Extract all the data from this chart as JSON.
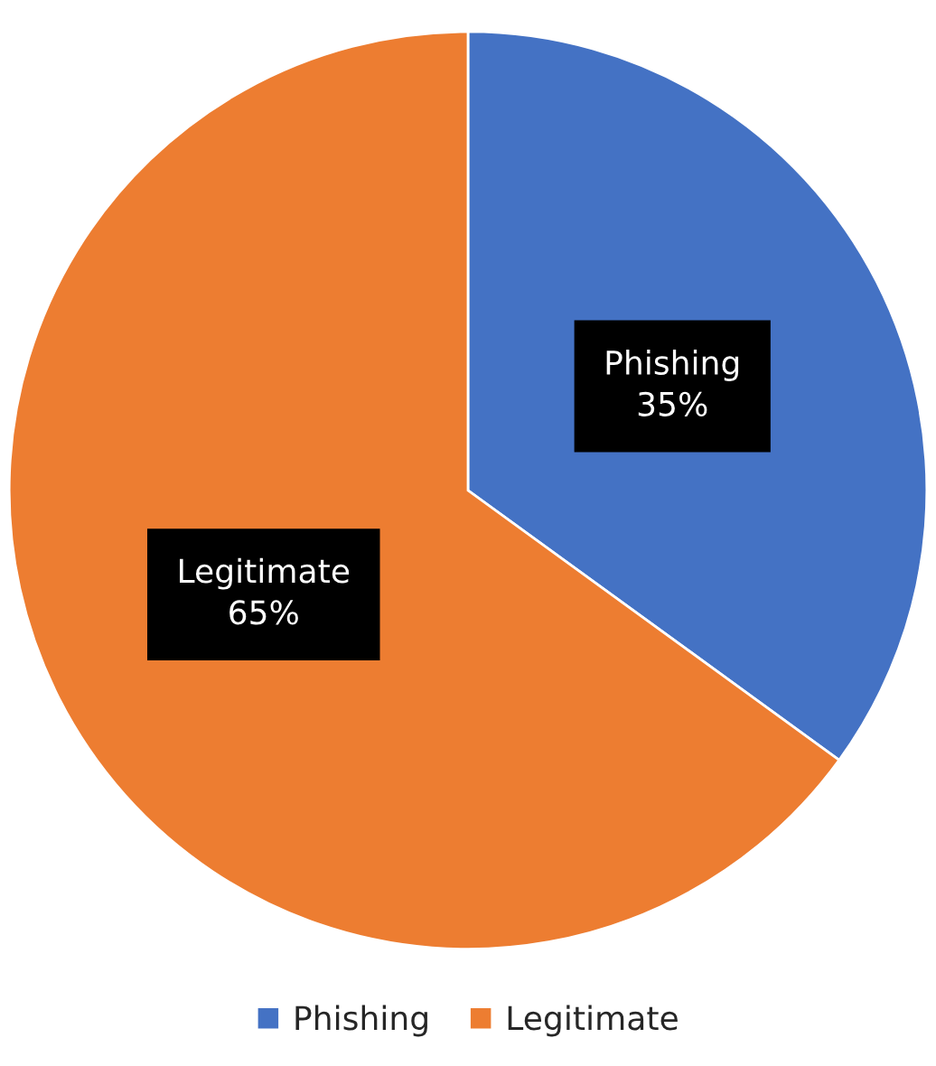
{
  "chart_data": {
    "type": "pie",
    "categories": [
      "Phishing",
      "Legitimate"
    ],
    "values": [
      35,
      65
    ],
    "value_labels": [
      "35%",
      "65%"
    ],
    "colors": [
      "#4472c4",
      "#ed7d31"
    ],
    "legend": "bottom"
  }
}
